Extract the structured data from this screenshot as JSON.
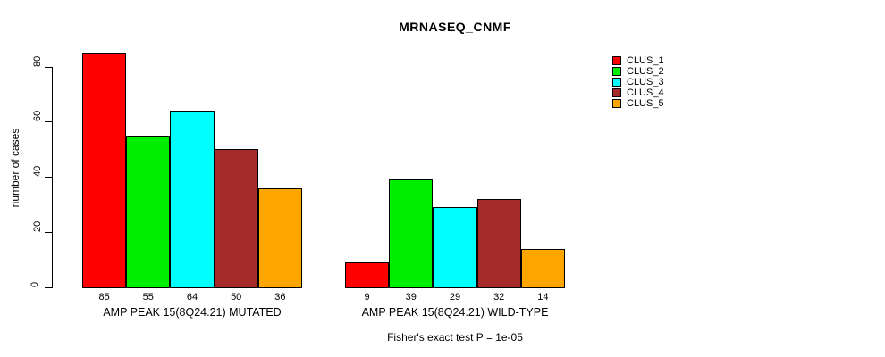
{
  "title": "MRNASEQ_CNMF",
  "y_axis": {
    "label": "number of cases",
    "ticks": [
      0,
      20,
      40,
      60,
      80
    ]
  },
  "footnote": "Fisher's exact test P = 1e-05",
  "chart_data": {
    "type": "bar",
    "title": "MRNASEQ_CNMF",
    "ylabel": "number of cases",
    "ylim": [
      0,
      85
    ],
    "grid": false,
    "legend_position": "right",
    "bar_value_labels_shown": true,
    "categories": [
      "AMP PEAK 15(8Q24.21) MUTATED",
      "AMP PEAK 15(8Q24.21) WILD-TYPE"
    ],
    "series": [
      {
        "name": "CLUS_1",
        "color": "#FF0000",
        "values": [
          85,
          9
        ]
      },
      {
        "name": "CLUS_2",
        "color": "#00EE00",
        "values": [
          55,
          39
        ]
      },
      {
        "name": "CLUS_3",
        "color": "#00FFFF",
        "values": [
          64,
          29
        ]
      },
      {
        "name": "CLUS_4",
        "color": "#A52A2A",
        "values": [
          50,
          32
        ]
      },
      {
        "name": "CLUS_5",
        "color": "#FFA500",
        "values": [
          36,
          14
        ]
      }
    ]
  }
}
